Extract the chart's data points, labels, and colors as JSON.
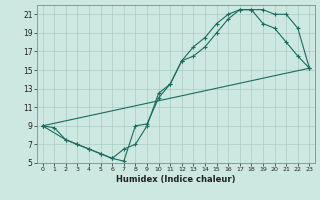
{
  "xlabel": "Humidex (Indice chaleur)",
  "bg_color": "#cce8e0",
  "line_color": "#1a6b5e",
  "grid_color": "#aaccc4",
  "xlim": [
    -0.5,
    23.5
  ],
  "ylim": [
    5,
    22
  ],
  "xticks": [
    0,
    1,
    2,
    3,
    4,
    5,
    6,
    7,
    8,
    9,
    10,
    11,
    12,
    13,
    14,
    15,
    16,
    17,
    18,
    19,
    20,
    21,
    22,
    23
  ],
  "yticks": [
    5,
    7,
    9,
    11,
    13,
    15,
    17,
    19,
    21
  ],
  "line1_x": [
    0,
    1,
    2,
    3,
    4,
    5,
    6,
    7,
    8,
    9,
    10,
    11,
    12,
    13,
    14,
    15,
    16,
    17,
    18,
    19,
    20,
    21,
    22,
    23
  ],
  "line1_y": [
    9.0,
    8.8,
    7.5,
    7.0,
    6.5,
    6.0,
    5.5,
    5.2,
    9.0,
    9.2,
    12.0,
    13.5,
    16.0,
    16.5,
    17.5,
    19.0,
    20.5,
    21.5,
    21.5,
    21.5,
    21.0,
    21.0,
    19.5,
    15.2
  ],
  "line2_x": [
    0,
    2,
    3,
    4,
    5,
    6,
    7,
    8,
    9,
    10,
    11,
    12,
    13,
    14,
    15,
    16,
    17,
    18,
    19,
    20,
    21,
    22,
    23
  ],
  "line2_y": [
    9.0,
    7.5,
    7.0,
    6.5,
    6.0,
    5.5,
    6.5,
    7.0,
    9.0,
    12.5,
    13.5,
    16.0,
    17.5,
    18.5,
    20.0,
    21.0,
    21.5,
    21.5,
    20.0,
    19.5,
    18.0,
    16.5,
    15.2
  ],
  "line3_x": [
    0,
    23
  ],
  "line3_y": [
    9.0,
    15.2
  ]
}
